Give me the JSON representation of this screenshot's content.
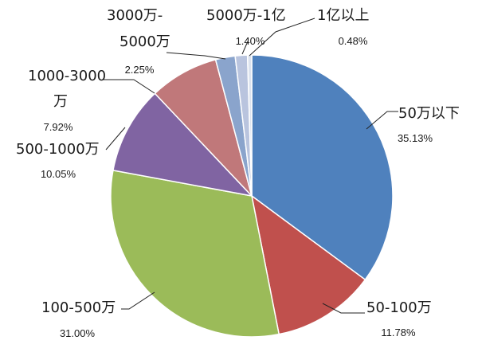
{
  "chart_data": {
    "type": "pie",
    "title": "",
    "slices": [
      {
        "label": "50万以下",
        "value": 35.13,
        "pct_text": "35.13%",
        "color": "#4F81BD"
      },
      {
        "label": "50-100万",
        "value": 11.78,
        "pct_text": "11.78%",
        "color": "#C0504D"
      },
      {
        "label": "100-500万",
        "value": 31.0,
        "pct_text": "31.00%",
        "color": "#9BBB59"
      },
      {
        "label": "500-1000万",
        "value": 10.05,
        "pct_text": "10.05%",
        "color": "#8064A2"
      },
      {
        "label_lines": [
          "1000-3000",
          "万"
        ],
        "label": "1000-3000万",
        "value": 7.92,
        "pct_text": "7.92%",
        "color": "#C0787A"
      },
      {
        "label_lines": [
          "3000万-",
          "5000万"
        ],
        "label": "3000万-5000万",
        "value": 2.25,
        "pct_text": "2.25%",
        "color": "#8AA4CC"
      },
      {
        "label": "5000万-1亿",
        "value": 1.4,
        "pct_text": "1.40%",
        "color": "#B9C4DE"
      },
      {
        "label": "1亿以上",
        "value": 0.48,
        "pct_text": "0.48%",
        "color": "#DCE3EE"
      }
    ],
    "start_angle": "12 o'clock",
    "direction": "clockwise",
    "legend": "none",
    "labels": "outside with leader lines"
  }
}
